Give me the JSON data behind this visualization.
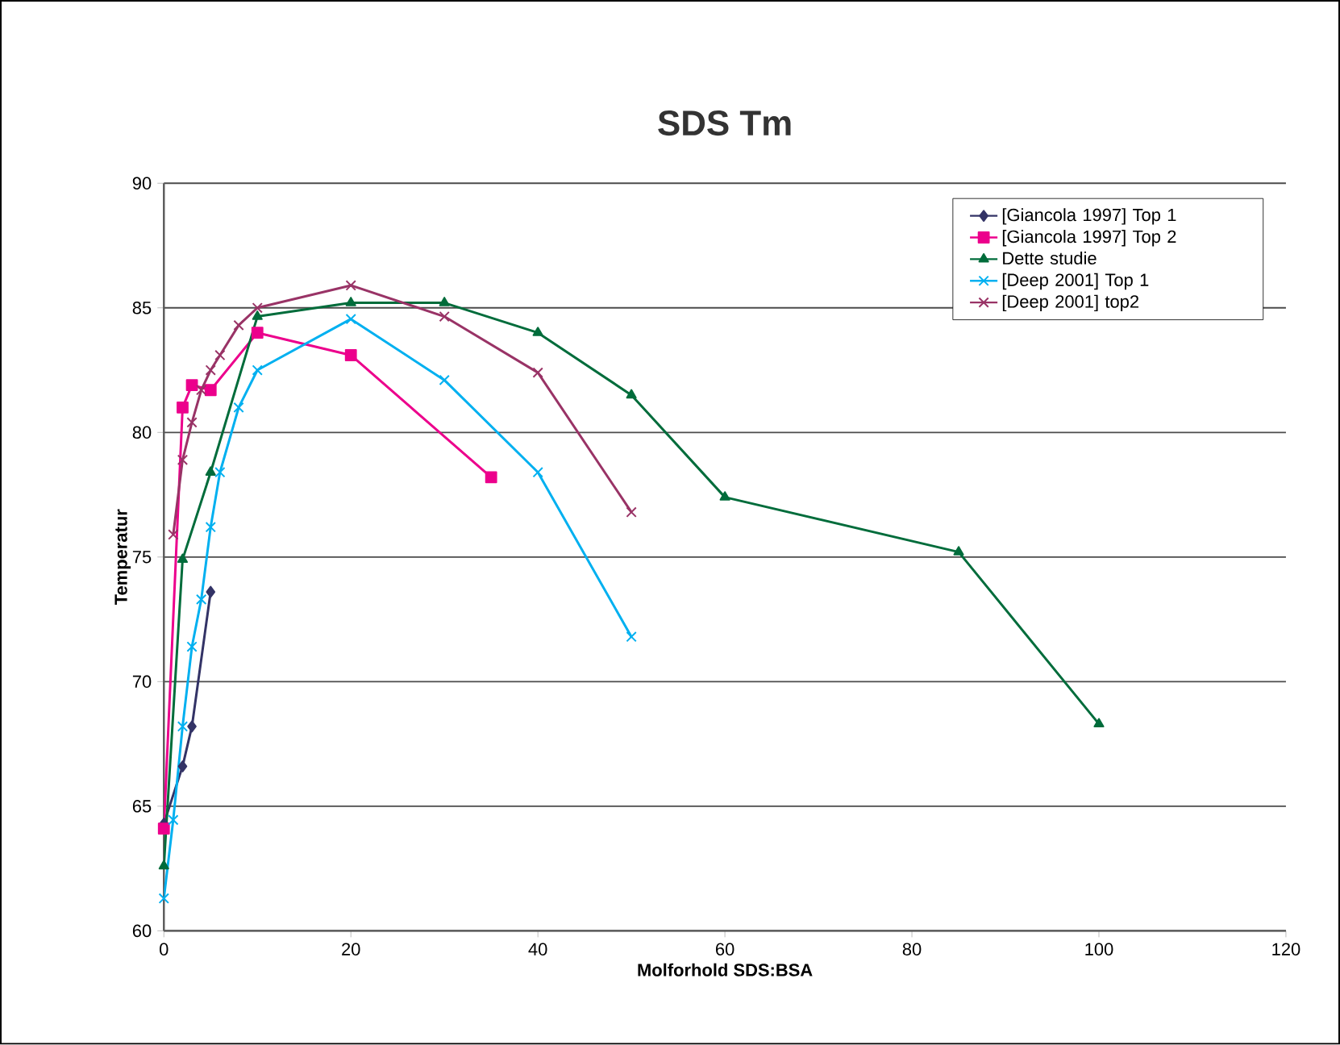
{
  "chart_data": {
    "type": "line",
    "title": "SDS Tm",
    "xlabel": "Molforhold SDS:BSA",
    "ylabel": "Temperatur",
    "xlim": [
      0,
      120
    ],
    "ylim": [
      60,
      90
    ],
    "xticks": [
      0,
      20,
      40,
      60,
      80,
      100,
      120
    ],
    "yticks": [
      60,
      65,
      70,
      75,
      80,
      85,
      90
    ],
    "grid": "y",
    "legend": "top right",
    "line_style": "solid",
    "series": [
      {
        "name": "[Giancola 1997] Top 1",
        "color": "#333366",
        "marker": "diamond",
        "x": [
          0,
          2,
          3,
          5
        ],
        "values": [
          64.3,
          66.6,
          68.2,
          73.6
        ]
      },
      {
        "name": "[Giancola 1997] Top 2",
        "color": "#ec008c",
        "marker": "square",
        "x": [
          0,
          2,
          3,
          5,
          10,
          20,
          35
        ],
        "values": [
          64.1,
          81.0,
          81.9,
          81.7,
          84.0,
          83.1,
          78.2
        ]
      },
      {
        "name": "Dette studie",
        "color": "#006c3b",
        "marker": "triangle",
        "x": [
          0,
          2,
          5,
          10,
          20,
          30,
          40,
          50,
          60,
          85,
          100
        ],
        "values": [
          62.6,
          74.9,
          78.4,
          84.65,
          85.2,
          85.2,
          84.0,
          81.5,
          77.4,
          75.2,
          68.3
        ]
      },
      {
        "name": "[Deep 2001] Top 1",
        "color": "#00b0f0",
        "marker": "cross",
        "x": [
          0,
          1,
          2,
          3,
          4,
          5,
          6,
          8,
          10,
          20,
          30,
          40,
          50
        ],
        "values": [
          61.3,
          64.45,
          68.2,
          71.4,
          73.3,
          76.2,
          78.4,
          81.0,
          82.5,
          84.55,
          82.1,
          78.4,
          71.8
        ]
      },
      {
        "name": "[Deep 2001] top2",
        "color": "#993366",
        "marker": "cross",
        "x": [
          1,
          2,
          3,
          4,
          5,
          6,
          8,
          10,
          20,
          30,
          40,
          50
        ],
        "values": [
          75.9,
          78.9,
          80.4,
          81.7,
          82.5,
          83.1,
          84.3,
          85.0,
          85.9,
          84.65,
          82.4,
          76.8
        ]
      }
    ]
  }
}
